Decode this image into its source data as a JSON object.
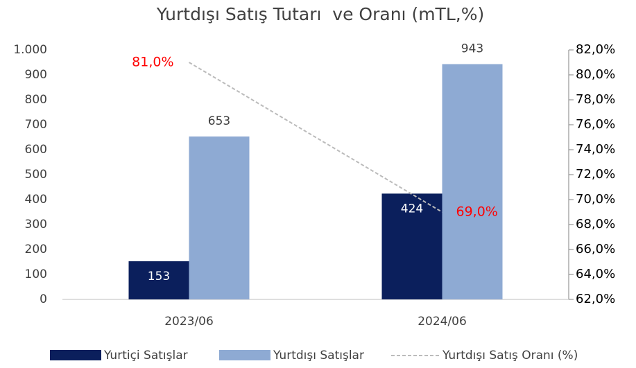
{
  "chart_data": {
    "type": "bar",
    "title": "Yurtdışı Satış Tutarı  ve Oranı (mTL,%)",
    "categories": [
      "2023/06",
      "2024/06"
    ],
    "series": [
      {
        "name": "Yurtiçi Satışlar",
        "type": "bar",
        "color": "#0b1f5c",
        "values": [
          153,
          424
        ]
      },
      {
        "name": "Yurtdışı Satışlar",
        "type": "bar",
        "color": "#8eaad3",
        "values": [
          653,
          943
        ]
      },
      {
        "name": "Yurtdışı Satış Oranı (%)",
        "type": "line",
        "axis": "y2",
        "color": "#bbbbbb",
        "label_color": "#ff0000",
        "values": [
          81,
          69
        ],
        "value_labels": [
          "81,0%",
          "69,0%"
        ]
      }
    ],
    "ylim": [
      0,
      1000
    ],
    "yticks": [
      0,
      100,
      200,
      300,
      400,
      500,
      600,
      700,
      800,
      900,
      {
        "value": 1000,
        "label": "1.000"
      }
    ],
    "y2lim": [
      62,
      82
    ],
    "y2ticks": [
      {
        "value": 62,
        "label": "62,0%"
      },
      {
        "value": 64,
        "label": "64,0%"
      },
      {
        "value": 66,
        "label": "66,0%"
      },
      {
        "value": 68,
        "label": "68,0%"
      },
      {
        "value": 70,
        "label": "70,0%"
      },
      {
        "value": 72,
        "label": "72,0%"
      },
      {
        "value": 74,
        "label": "74,0%"
      },
      {
        "value": 76,
        "label": "76,0%"
      },
      {
        "value": 78,
        "label": "78,0%"
      },
      {
        "value": 80,
        "label": "80,0%"
      },
      {
        "value": 82,
        "label": "82,0%"
      }
    ],
    "legend": "bottom"
  }
}
